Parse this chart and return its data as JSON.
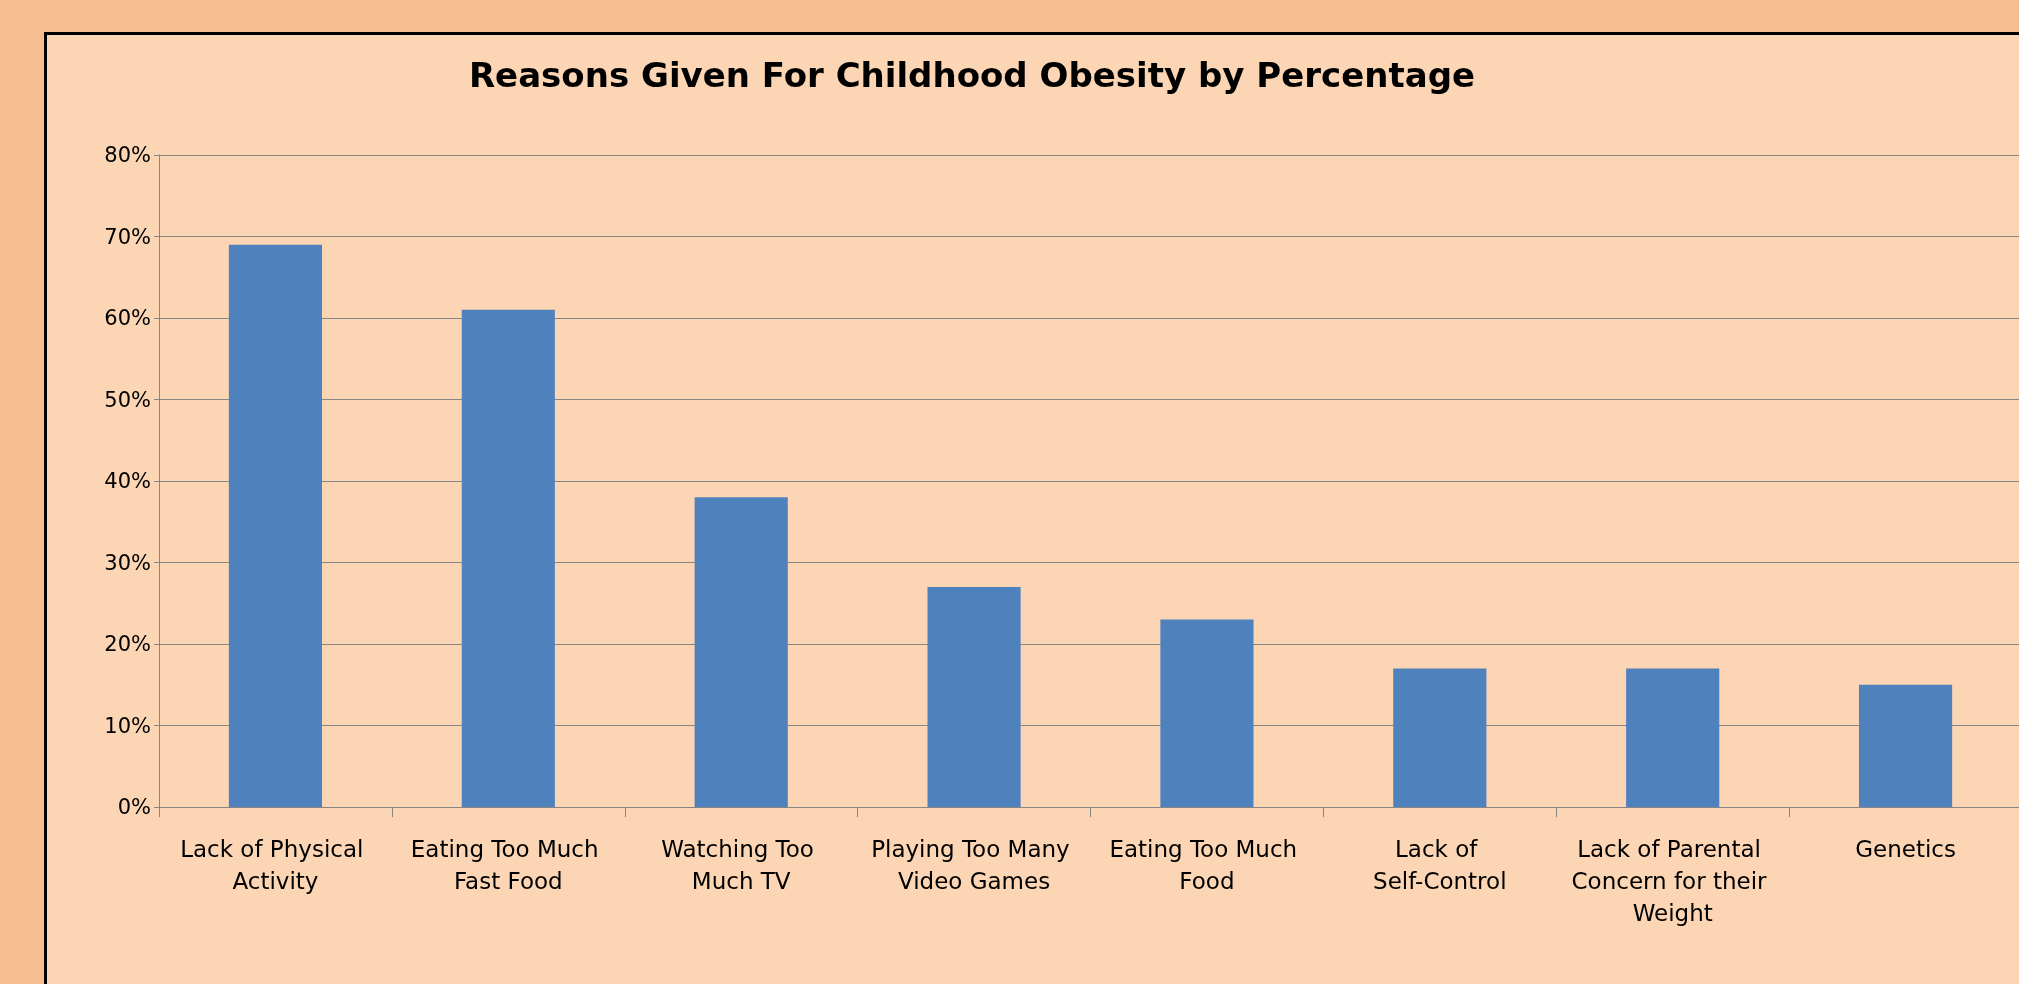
{
  "chart_data": {
    "type": "bar",
    "title": "Reasons Given For Childhood Obesity by Percentage",
    "categories": [
      "Lack of Physical Activity",
      "Eating Too Much Fast Food",
      "Watching Too Much TV",
      "Playing Too Many Video Games",
      "Eating Too Much Food",
      "Lack of Self-Control",
      "Lack of Parental Concern for their Weight",
      "Genetics"
    ],
    "values": [
      69,
      61,
      38,
      27,
      23,
      17,
      17,
      15
    ],
    "color": "#4f81bd",
    "ylim": [
      0,
      80
    ],
    "yticks": [
      {
        "value": 0,
        "label": "0%"
      },
      {
        "value": 10,
        "label": "10%"
      },
      {
        "value": 20,
        "label": "20%"
      },
      {
        "value": 30,
        "label": "30%"
      },
      {
        "value": 40,
        "label": "40%"
      },
      {
        "value": 50,
        "label": "50%"
      },
      {
        "value": 60,
        "label": "60%"
      },
      {
        "value": 70,
        "label": "70%"
      },
      {
        "value": 80,
        "label": "80%"
      }
    ],
    "grid": "y"
  }
}
